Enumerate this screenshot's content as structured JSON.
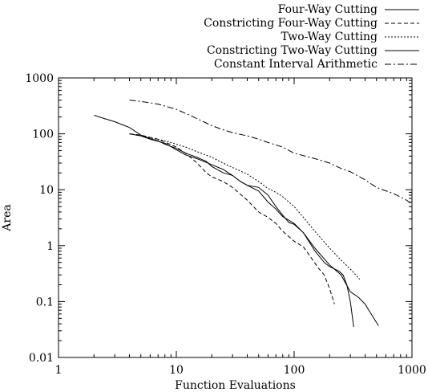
{
  "chart_data": {
    "type": "line",
    "title": "",
    "xlabel": "Function Evaluations",
    "ylabel": "Area",
    "xscale": "log",
    "yscale": "log",
    "xlim": [
      1,
      1000
    ],
    "ylim": [
      0.01,
      1000
    ],
    "xticks": [
      1,
      10,
      100,
      1000
    ],
    "xtick_labels": [
      "1",
      "10",
      "100",
      "1000"
    ],
    "yticks": [
      0.01,
      0.1,
      1,
      10,
      100,
      1000
    ],
    "ytick_labels": [
      "0.01",
      "0.1",
      "1",
      "10",
      "100",
      "1000"
    ],
    "grid": false,
    "legend_position": "top-right",
    "series": [
      {
        "name": "Four-Way Cutting",
        "dash": "",
        "x": [
          2,
          2.5,
          3,
          3.5,
          4,
          5,
          6,
          7,
          8,
          10,
          12,
          15,
          18,
          20,
          25,
          30,
          35,
          40,
          50,
          60,
          70,
          80,
          90,
          100,
          120,
          150,
          180,
          200,
          240,
          260,
          280,
          300,
          320
        ],
        "y": [
          215,
          185,
          165,
          145,
          130,
          95,
          82,
          75,
          65,
          55,
          45,
          38,
          32,
          26,
          20,
          18,
          14,
          12,
          11,
          8,
          5,
          3.5,
          2.6,
          2.4,
          1.7,
          0.8,
          0.5,
          0.42,
          0.35,
          0.3,
          0.2,
          0.1,
          0.035
        ]
      },
      {
        "name": "Constricting Four-Way Cutting",
        "dash": "5,3",
        "x": [
          4,
          5,
          7,
          10,
          12,
          15,
          18,
          20,
          25,
          30,
          40,
          50,
          60,
          70,
          80,
          100,
          120,
          140,
          160,
          180,
          200,
          220
        ],
        "y": [
          100,
          95,
          80,
          58,
          45,
          30,
          20,
          17,
          14,
          11,
          6.5,
          4,
          3.2,
          2.5,
          1.8,
          1.2,
          0.95,
          0.6,
          0.4,
          0.3,
          0.17,
          0.09
        ]
      },
      {
        "name": "Two-Way Cutting",
        "dash": "2,2",
        "x": [
          4,
          5,
          6,
          8,
          10,
          12,
          15,
          20,
          25,
          30,
          40,
          50,
          60,
          70,
          80,
          100,
          120,
          150,
          200,
          250,
          300,
          360
        ],
        "y": [
          100,
          92,
          85,
          75,
          65,
          58,
          48,
          38,
          30,
          25,
          19,
          14,
          10.5,
          9,
          7.5,
          5,
          3.2,
          1.8,
          0.9,
          0.55,
          0.38,
          0.25
        ]
      },
      {
        "name": "Constricting Two-Way Cutting",
        "dash": "",
        "x": [
          4,
          5,
          6,
          8,
          10,
          12,
          15,
          20,
          25,
          30,
          35,
          40,
          50,
          60,
          70,
          80,
          100,
          120,
          150,
          200,
          250,
          300,
          350,
          400,
          450,
          520
        ],
        "y": [
          100,
          92,
          80,
          68,
          52,
          42,
          36,
          28,
          23,
          18,
          14,
          12,
          9.5,
          6,
          4.5,
          3.3,
          2.5,
          1.7,
          0.9,
          0.45,
          0.3,
          0.15,
          0.12,
          0.09,
          0.06,
          0.037
        ]
      },
      {
        "name": "Constant Interval Arithmetic",
        "dash": "8,3,2,3",
        "x": [
          4,
          5,
          7,
          10,
          13,
          16,
          20,
          25,
          30,
          40,
          50,
          60,
          80,
          100,
          150,
          200,
          250,
          300,
          400,
          500,
          700,
          900,
          1000
        ],
        "y": [
          400,
          380,
          340,
          275,
          215,
          175,
          140,
          118,
          105,
          92,
          80,
          70,
          58,
          45,
          36,
          30,
          24,
          21,
          15,
          11,
          8.5,
          6.5,
          5.5
        ]
      }
    ]
  }
}
